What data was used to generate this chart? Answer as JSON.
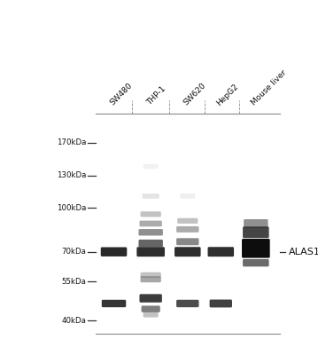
{
  "background_color": "#ffffff",
  "blot_bg": "#dcdad8",
  "lanes": [
    "SW480",
    "THP-1",
    "SW620",
    "HepG2",
    "Mouse liver"
  ],
  "mw_labels": [
    "170kDa",
    "130kDa",
    "100kDa",
    "70kDa",
    "55kDa",
    "40kDa"
  ],
  "mw_positions": [
    170,
    130,
    100,
    70,
    55,
    40
  ],
  "annotation": "ALAS1",
  "annotation_mw": 70,
  "band_color_dark": "#111111",
  "band_color_mid": "#333333",
  "band_color_light": "#666666",
  "band_color_faint": "#999999"
}
